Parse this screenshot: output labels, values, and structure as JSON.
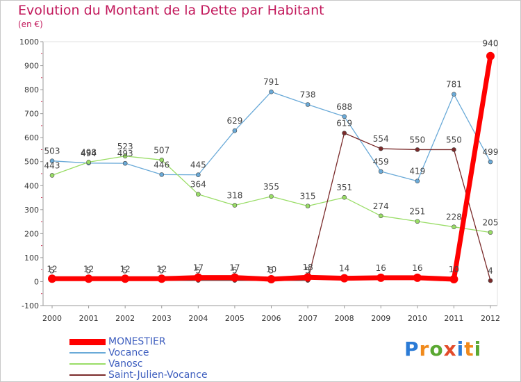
{
  "title": "Evolution du Montant de la Dette par Habitant",
  "subtitle": "(en €)",
  "brand": [
    "P",
    "r",
    "o",
    "x",
    "i",
    "t",
    "i"
  ],
  "chart_data": {
    "type": "line",
    "x": [
      "2000",
      "2001",
      "2002",
      "2003",
      "2004",
      "2005",
      "2006",
      "2007",
      "2008",
      "2009",
      "2010",
      "2011",
      "2012"
    ],
    "ylim": [
      -100,
      1000
    ],
    "yticks": [
      -100,
      0,
      100,
      200,
      300,
      400,
      500,
      600,
      700,
      800,
      900,
      1000
    ],
    "grid": false,
    "legend_position": "bottom-left",
    "series": [
      {
        "name": "MONESTIER",
        "color": "#ff0000",
        "values": [
          12,
          12,
          12,
          12,
          17,
          17,
          10,
          18,
          14,
          16,
          16,
          10,
          940
        ],
        "labels": [
          "12",
          "12",
          "12",
          "12",
          "17",
          "17",
          "10",
          "18",
          "14",
          "16",
          "16",
          "10",
          "940"
        ]
      },
      {
        "name": "Vocance",
        "color": "#6aaad8",
        "values": [
          503,
          494,
          493,
          446,
          445,
          629,
          791,
          738,
          688,
          459,
          419,
          781,
          499
        ],
        "labels": [
          "503",
          "494",
          "493",
          "446",
          "445",
          "629",
          "791",
          "738",
          "688",
          "459",
          "419",
          "781",
          "499"
        ]
      },
      {
        "name": "Vanosc",
        "color": "#99dd66",
        "values": [
          443,
          498,
          523,
          507,
          364,
          318,
          355,
          315,
          351,
          274,
          251,
          228,
          205
        ],
        "labels": [
          "443",
          "498",
          "523",
          "507",
          "364",
          "318",
          "355",
          "315",
          "351",
          "274",
          "251",
          "228",
          "205"
        ]
      },
      {
        "name": "Saint-Julien-Vocance",
        "color": "#7a2a2a",
        "values": [
          5,
          5,
          5,
          5,
          5,
          5,
          5,
          5,
          619,
          554,
          550,
          550,
          4
        ],
        "labels": [
          "5",
          "5",
          "5",
          "5",
          "5",
          "5",
          "5",
          "5",
          "619",
          "554",
          "550",
          "550",
          "4"
        ]
      }
    ]
  }
}
